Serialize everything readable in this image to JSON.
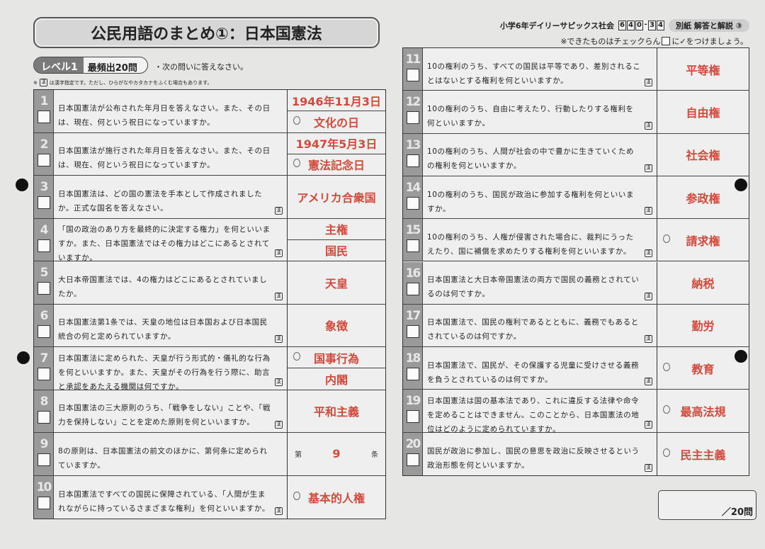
{
  "title": "公民用語のまとめ①：日本国憲法",
  "level": {
    "label": "レベル1",
    "count": "最頻出20問"
  },
  "instruction": "・次の問いに答えなさい。",
  "note": {
    "prefix": "※",
    "icon_text": "漢",
    "text": "は漢字指定です。ただし、ひらがなやカタカナをふくむ場合もあります。"
  },
  "header": {
    "series": "小学6年デイリーサピックス社会",
    "code": [
      "6",
      "4",
      "0",
      "-",
      "3",
      "4"
    ],
    "badge": "別紙  解答と解説 ③"
  },
  "check_note": {
    "before": "※できたものはチェックらん",
    "after": "に✓をつけましょう。"
  },
  "kan_icon": "漢",
  "answer_color": "#d24a3c",
  "questions": [
    {
      "n": "1",
      "q": "日本国憲法が公布された年月日を答えなさい。また、その日は、現在、何という祝日になっていますか。",
      "kan": false,
      "answers": [
        "1946年11月3日",
        "文化の日"
      ],
      "marks": [
        false,
        true
      ]
    },
    {
      "n": "2",
      "q": "日本国憲法が施行された年月日を答えなさい。また、その日は、現在、何という祝日になっていますか。",
      "kan": false,
      "answers": [
        "1947年5月3日",
        "憲法記念日"
      ],
      "marks": [
        false,
        true
      ]
    },
    {
      "n": "3",
      "q": "日本国憲法は、どの国の憲法を手本として作成されましたか。正式な国名を答えなさい。",
      "kan": true,
      "answers": [
        "アメリカ合衆国"
      ]
    },
    {
      "n": "4",
      "q": "「国の政治のあり方を最終的に決定する権力」を何といいますか。また、日本国憲法ではその権力はどこにあるとされていますか。",
      "kan": true,
      "answers": [
        "主権",
        "国民"
      ]
    },
    {
      "n": "5",
      "q": "大日本帝国憲法では、4の権力はどこにあるとされていましたか。",
      "kan": true,
      "answers": [
        "天皇"
      ]
    },
    {
      "n": "6",
      "q": "日本国憲法第1条では、天皇の地位は日本国および日本国民統合の何と定められていますか。",
      "kan": true,
      "answers": [
        "象徴"
      ]
    },
    {
      "n": "7",
      "q": "日本国憲法に定められた、天皇が行う形式的・儀礼的な行為を何といいますか。また、天皇がその行為を行う際に、助言と承認をあたえる機関は何ですか。",
      "kan": true,
      "answers": [
        "国事行為",
        "内閣"
      ],
      "marks": [
        true,
        false
      ]
    },
    {
      "n": "8",
      "q": "日本国憲法の三大原則のうち、「戦争をしない」ことや、「戦力を保持しない」ことを定めた原則を何といいますか。",
      "kan": true,
      "answers": [
        "平和主義"
      ]
    },
    {
      "n": "9",
      "q": "8の原則は、日本国憲法の前文のほかに、第何条に定められていますか。",
      "kan": false,
      "article": {
        "prefix": "第",
        "value": "9",
        "suffix": "条"
      }
    },
    {
      "n": "10",
      "q": "日本国憲法ですべての国民に保障されている、「人間が生まれながらに持っているさまざまな権利」を何といいますか。",
      "kan": true,
      "answers": [
        "基本的人権"
      ],
      "marks": [
        true
      ]
    },
    {
      "n": "11",
      "q": "10の権利のうち、すべての国民は平等であり、差別されることはないとする権利を何といいますか。",
      "kan": true,
      "answers": [
        "平等権"
      ]
    },
    {
      "n": "12",
      "q": "10の権利のうち、自由に考えたり、行動したりする権利を何といいますか。",
      "kan": true,
      "answers": [
        "自由権"
      ]
    },
    {
      "n": "13",
      "q": "10の権利のうち、人間が社会の中で豊かに生きていくための権利を何といいますか。",
      "kan": true,
      "answers": [
        "社会権"
      ]
    },
    {
      "n": "14",
      "q": "10の権利のうち、国民が政治に参加する権利を何といいますか。",
      "kan": true,
      "answers": [
        "参政権"
      ]
    },
    {
      "n": "15",
      "q": "10の権利のうち、人権が侵害された場合に、裁判にうったえたり、国に補償を求めたりする権利を何といいますか。",
      "kan": true,
      "answers": [
        "請求権"
      ],
      "marks": [
        true
      ]
    },
    {
      "n": "16",
      "q": "日本国憲法と大日本帝国憲法の両方で国民の義務とされているのは何ですか。",
      "kan": true,
      "answers": [
        "納税"
      ]
    },
    {
      "n": "17",
      "q": "日本国憲法で、国民の権利であるとともに、義務でもあるとされているのは何ですか。",
      "kan": true,
      "answers": [
        "勤労"
      ]
    },
    {
      "n": "18",
      "q": "日本国憲法で、国民が、その保護する児童に受けさせる義務を負うとされているのは何ですか。",
      "kan": true,
      "answers": [
        "教育"
      ],
      "marks": [
        true
      ]
    },
    {
      "n": "19",
      "q": "日本国憲法は国の基本法であり、これに違反する法律や命令を定めることはできません。このことから、日本国憲法の地位はどのように定められていますか。",
      "kan": true,
      "answers": [
        "最高法規"
      ],
      "marks": [
        true
      ]
    },
    {
      "n": "20",
      "q": "国民が政治に参加し、国民の意思を政治に反映させるという政治形態を何といいますか。",
      "kan": true,
      "answers": [
        "民主主義"
      ],
      "marks": [
        true
      ]
    }
  ],
  "score": {
    "total": "／20問"
  }
}
